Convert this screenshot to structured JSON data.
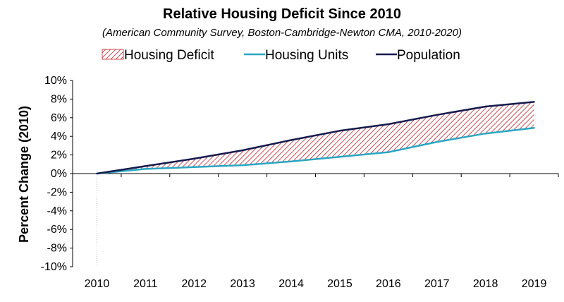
{
  "chart_data": {
    "type": "area",
    "title": "Relative Housing Deficit Since 2010",
    "subtitle": "(American Community Survey, Boston-Cambridge-Newton CMA, 2010-2020)",
    "ylabel": "Percent Change (2010)",
    "xlabel": "",
    "categories": [
      "2010",
      "2011",
      "2012",
      "2013",
      "2014",
      "2015",
      "2016",
      "2017",
      "2018",
      "2019"
    ],
    "ylim": [
      -10,
      10
    ],
    "yticks": [
      "10%",
      "8%",
      "6%",
      "4%",
      "2%",
      "0%",
      "-2%",
      "-4%",
      "-6%",
      "-8%",
      "-10%"
    ],
    "grid": false,
    "legend_position": "top",
    "legend": [
      "Housing Deficit",
      "Housing Units",
      "Population"
    ],
    "series": [
      {
        "name": "Housing Units",
        "color": "#2aa6c2",
        "values": [
          0.0,
          0.5,
          0.7,
          0.9,
          1.3,
          1.8,
          2.3,
          3.4,
          4.3,
          4.9
        ]
      },
      {
        "name": "Population",
        "color": "#141b4d",
        "values": [
          0.0,
          0.8,
          1.6,
          2.5,
          3.6,
          4.6,
          5.3,
          6.3,
          7.2,
          7.7
        ]
      }
    ],
    "deficit_area": {
      "name": "Housing Deficit",
      "color": "#c0202a",
      "fill": "hatched",
      "between": [
        "Housing Units",
        "Population"
      ]
    }
  }
}
